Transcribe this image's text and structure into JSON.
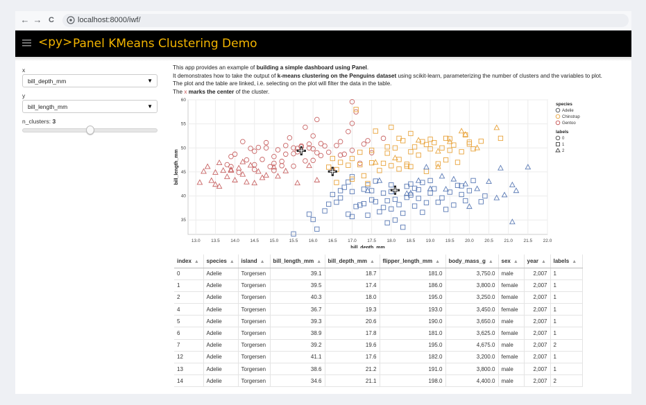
{
  "browser": {
    "back_glyph": "←",
    "forward_glyph": "→",
    "reload_glyph": "C",
    "url": "localhost:8000/iwf/"
  },
  "header": {
    "logo": "<py>",
    "title": "Panel KMeans Clustering Demo",
    "accent": "#f2b400"
  },
  "sidebar": {
    "x_label": "x",
    "x_value": "bill_depth_mm",
    "y_label": "y",
    "y_value": "bill_length_mm",
    "clusters_label": "n_clusters:",
    "clusters_value": "3",
    "clusters_fraction": 0.5
  },
  "intro": {
    "l1a": "This app provides an example of ",
    "l1b": "building a simple dashboard using Panel",
    "l1c": ".",
    "l2a": "It demonstrates how to take the output of ",
    "l2b": "k-means clustering on the Penguins dataset",
    "l2c": " using scikit-learn, parameterizing the number of clusters and the variables to plot.",
    "l3": "The plot and the table are linked, i.e. selecting on the plot will filter the data in the table.",
    "l4a": "The ",
    "l4x": "x",
    "l4b": "marks the center",
    "l4c": " of the cluster."
  },
  "chart_data": {
    "type": "scatter",
    "xlabel": "bill_depth_mm",
    "ylabel": "bill_length_mm",
    "xlim": [
      12.8,
      22.0
    ],
    "ylim": [
      32,
      60
    ],
    "xticks": [
      "13.0",
      "13.5",
      "14.0",
      "14.5",
      "15.0",
      "15.5",
      "16.0",
      "16.5",
      "17.0",
      "17.5",
      "18.0",
      "18.5",
      "19.0",
      "19.5",
      "20.0",
      "20.5",
      "21.0",
      "21.5",
      "22.0"
    ],
    "yticks": [
      "35",
      "40",
      "45",
      "50",
      "55",
      "60"
    ],
    "legend_species_title": "species",
    "legend_species": [
      {
        "name": "Adelie",
        "color": "#45494d"
      },
      {
        "name": "Chinstrap",
        "color": "#e8a33b"
      },
      {
        "name": "Gentoo",
        "color": "#c44e4e"
      }
    ],
    "legend_labels_title": "labels",
    "legend_labels": [
      {
        "name": "0",
        "shape": "circle"
      },
      {
        "name": "1",
        "shape": "square"
      },
      {
        "name": "2",
        "shape": "triangle"
      }
    ],
    "cluster_colors": {
      "circle": "#c86464",
      "square_low": "#5a7ab5",
      "square_high": "#e8a33b",
      "triangle_blue": "#5a7ab5",
      "triangle_red": "#c86464"
    },
    "centers": [
      {
        "x": 15.7,
        "y": 49.4
      },
      {
        "x": 16.5,
        "y": 45.1
      },
      {
        "x": 18.1,
        "y": 41.2
      }
    ],
    "series": [
      {
        "name": "label-0",
        "shape": "circle",
        "color": "#c86464",
        "points": [
          [
            14.3,
            47.5
          ],
          [
            14.5,
            49.3
          ],
          [
            14.8,
            50.0
          ],
          [
            14.9,
            46.1
          ],
          [
            15.0,
            48.2
          ],
          [
            15.1,
            49.6
          ],
          [
            15.2,
            46.3
          ],
          [
            15.3,
            50.5
          ],
          [
            15.5,
            48.8
          ],
          [
            15.6,
            49.9
          ],
          [
            15.7,
            50.4
          ],
          [
            15.8,
            47.3
          ],
          [
            15.9,
            50.0
          ],
          [
            16.0,
            49.8
          ],
          [
            16.1,
            55.9
          ],
          [
            16.2,
            48.4
          ],
          [
            16.3,
            50.4
          ],
          [
            16.4,
            49.1
          ],
          [
            16.5,
            45.5
          ],
          [
            16.6,
            50.5
          ],
          [
            16.8,
            48.7
          ],
          [
            17.0,
            49.5
          ],
          [
            17.0,
            59.6
          ],
          [
            17.2,
            46.8
          ],
          [
            17.3,
            50.8
          ],
          [
            17.5,
            49.0
          ],
          [
            17.8,
            52.0
          ],
          [
            17.0,
            55.1
          ],
          [
            16.7,
            51.3
          ],
          [
            15.8,
            54.3
          ],
          [
            15.4,
            52.1
          ],
          [
            14.6,
            50.1
          ],
          [
            14.2,
            51.3
          ],
          [
            13.9,
            48.2
          ],
          [
            14.7,
            47.6
          ],
          [
            15.9,
            50.8
          ],
          [
            16.0,
            52.5
          ],
          [
            16.9,
            53.4
          ],
          [
            15.3,
            48.7
          ],
          [
            15.7,
            50.2
          ],
          [
            14.4,
            49.9
          ],
          [
            14.8,
            51.1
          ],
          [
            16.2,
            50.9
          ],
          [
            17.1,
            57.5
          ],
          [
            17.4,
            51.5
          ],
          [
            15.5,
            50.0
          ],
          [
            13.9,
            46.1
          ],
          [
            14.0,
            48.7
          ],
          [
            14.5,
            46.5
          ],
          [
            15.0,
            46.8
          ],
          [
            15.2,
            47.2
          ],
          [
            15.6,
            49.2
          ],
          [
            16.1,
            49.0
          ],
          [
            16.7,
            48.5
          ],
          [
            14.1,
            44.9
          ],
          [
            13.8,
            46.5
          ],
          [
            14.5,
            45.5
          ],
          [
            15.0,
            45.3
          ],
          [
            15.5,
            46.2
          ],
          [
            16.0,
            47.4
          ]
        ]
      },
      {
        "name": "label-1-low",
        "shape": "square",
        "color": "#5a7ab5",
        "points": [
          [
            15.5,
            32.1
          ],
          [
            16.0,
            35.1
          ],
          [
            16.1,
            33.1
          ],
          [
            16.3,
            36.9
          ],
          [
            16.6,
            38.7
          ],
          [
            16.7,
            39.6
          ],
          [
            16.9,
            36.2
          ],
          [
            17.0,
            35.7
          ],
          [
            17.0,
            40.9
          ],
          [
            17.1,
            37.8
          ],
          [
            17.2,
            38.1
          ],
          [
            17.3,
            38.4
          ],
          [
            17.4,
            36.0
          ],
          [
            17.5,
            39.2
          ],
          [
            17.5,
            41.1
          ],
          [
            17.6,
            38.8
          ],
          [
            17.7,
            36.7
          ],
          [
            17.8,
            40.6
          ],
          [
            17.9,
            39.0
          ],
          [
            18.0,
            37.3
          ],
          [
            18.0,
            40.9
          ],
          [
            18.1,
            35.0
          ],
          [
            18.2,
            38.2
          ],
          [
            18.3,
            36.4
          ],
          [
            18.4,
            39.7
          ],
          [
            18.4,
            42.0
          ],
          [
            18.5,
            40.2
          ],
          [
            18.6,
            37.9
          ],
          [
            18.7,
            39.5
          ],
          [
            18.7,
            41.3
          ],
          [
            18.8,
            36.6
          ],
          [
            18.9,
            38.6
          ],
          [
            19.0,
            40.6
          ],
          [
            19.1,
            41.5
          ],
          [
            19.2,
            38.7
          ],
          [
            19.3,
            39.6
          ],
          [
            19.4,
            37.2
          ],
          [
            19.5,
            40.8
          ],
          [
            19.6,
            38.1
          ],
          [
            19.7,
            42.2
          ],
          [
            19.8,
            40.3
          ],
          [
            19.9,
            39.0
          ],
          [
            20.0,
            41.1
          ],
          [
            20.1,
            43.2
          ],
          [
            20.3,
            38.8
          ],
          [
            16.4,
            38.3
          ],
          [
            16.8,
            41.8
          ],
          [
            17.6,
            43.1
          ],
          [
            17.9,
            34.4
          ],
          [
            18.3,
            33.5
          ],
          [
            18.5,
            42.5
          ],
          [
            19.0,
            43.2
          ],
          [
            18.8,
            42.8
          ],
          [
            17.4,
            42.3
          ],
          [
            16.5,
            40.3
          ],
          [
            19.8,
            42.1
          ],
          [
            20.4,
            40.0
          ],
          [
            17.8,
            37.6
          ],
          [
            18.1,
            39.3
          ],
          [
            16.9,
            42.9
          ],
          [
            15.9,
            36.2
          ],
          [
            17.0,
            44.0
          ],
          [
            18.0,
            42.3
          ],
          [
            16.7,
            41.1
          ],
          [
            17.3,
            41.4
          ],
          [
            18.6,
            41.6
          ]
        ]
      },
      {
        "name": "label-1-high",
        "shape": "square",
        "color": "#e8a33b",
        "points": [
          [
            16.4,
            46.0
          ],
          [
            16.6,
            45.5
          ],
          [
            16.7,
            47.0
          ],
          [
            17.0,
            47.8
          ],
          [
            17.2,
            46.5
          ],
          [
            17.5,
            49.5
          ],
          [
            17.8,
            46.8
          ],
          [
            17.9,
            48.9
          ],
          [
            18.0,
            46.3
          ],
          [
            18.1,
            50.0
          ],
          [
            18.2,
            47.6
          ],
          [
            18.3,
            51.5
          ],
          [
            18.4,
            46.2
          ],
          [
            18.5,
            49.2
          ],
          [
            18.6,
            50.2
          ],
          [
            18.7,
            48.5
          ],
          [
            18.8,
            51.3
          ],
          [
            18.9,
            50.7
          ],
          [
            19.0,
            49.8
          ],
          [
            19.1,
            51.1
          ],
          [
            19.2,
            46.7
          ],
          [
            19.3,
            50.0
          ],
          [
            19.4,
            52.0
          ],
          [
            19.5,
            51.9
          ],
          [
            19.6,
            50.6
          ],
          [
            19.8,
            49.2
          ],
          [
            19.9,
            52.7
          ],
          [
            20.0,
            50.8
          ],
          [
            20.1,
            49.8
          ],
          [
            20.3,
            51.4
          ],
          [
            17.1,
            58.0
          ],
          [
            17.6,
            53.5
          ],
          [
            18.0,
            54.3
          ],
          [
            18.4,
            46.6
          ],
          [
            17.4,
            42.6
          ],
          [
            16.6,
            42.8
          ],
          [
            17.0,
            43.5
          ],
          [
            17.3,
            44.2
          ],
          [
            17.7,
            45.3
          ],
          [
            18.2,
            45.6
          ],
          [
            18.5,
            46.1
          ],
          [
            18.9,
            45.1
          ],
          [
            19.4,
            47.5
          ],
          [
            19.7,
            47.0
          ],
          [
            20.0,
            51.2
          ],
          [
            20.8,
            52.0
          ],
          [
            19.0,
            51.8
          ],
          [
            18.5,
            53.0
          ],
          [
            17.9,
            50.2
          ],
          [
            17.2,
            49.1
          ],
          [
            16.9,
            46.4
          ],
          [
            19.5,
            49.5
          ],
          [
            18.2,
            52.0
          ],
          [
            16.5,
            47.8
          ],
          [
            17.5,
            46.9
          ]
        ]
      },
      {
        "name": "label-2-red",
        "shape": "triangle",
        "color": "#c86464",
        "points": [
          [
            13.1,
            42.8
          ],
          [
            13.2,
            45.1
          ],
          [
            13.3,
            46.1
          ],
          [
            13.4,
            43.2
          ],
          [
            13.5,
            44.9
          ],
          [
            13.6,
            42.0
          ],
          [
            13.7,
            45.3
          ],
          [
            13.8,
            44.0
          ],
          [
            13.9,
            45.5
          ],
          [
            14.0,
            43.3
          ],
          [
            14.1,
            45.8
          ],
          [
            14.2,
            44.5
          ],
          [
            14.3,
            42.9
          ],
          [
            14.4,
            46.4
          ],
          [
            14.5,
            42.7
          ],
          [
            14.6,
            45.1
          ],
          [
            14.7,
            43.8
          ],
          [
            14.8,
            44.3
          ],
          [
            15.0,
            46.0
          ],
          [
            15.1,
            44.1
          ],
          [
            15.3,
            45.2
          ],
          [
            15.6,
            42.7
          ],
          [
            16.1,
            43.3
          ],
          [
            15.9,
            46.3
          ],
          [
            13.6,
            46.9
          ],
          [
            13.9,
            45.3
          ],
          [
            14.2,
            47.1
          ],
          [
            13.5,
            42.4
          ]
        ]
      },
      {
        "name": "label-2-blue",
        "shape": "triangle",
        "color": "#5a7ab5",
        "points": [
          [
            18.5,
            40.6
          ],
          [
            19.0,
            41.5
          ],
          [
            19.3,
            44.1
          ],
          [
            19.6,
            43.5
          ],
          [
            19.9,
            42.5
          ],
          [
            20.2,
            41.5
          ],
          [
            20.5,
            43.0
          ],
          [
            20.7,
            39.6
          ],
          [
            20.9,
            40.2
          ],
          [
            21.1,
            42.3
          ],
          [
            21.2,
            41.1
          ],
          [
            21.5,
            46.0
          ],
          [
            21.1,
            34.6
          ],
          [
            20.0,
            37.8
          ],
          [
            18.7,
            43.2
          ],
          [
            17.7,
            43.2
          ],
          [
            18.4,
            40.5
          ],
          [
            17.4,
            41.1
          ],
          [
            19.4,
            41.4
          ],
          [
            18.9,
            46.0
          ],
          [
            20.8,
            45.8
          ]
        ]
      },
      {
        "name": "label-2-amber",
        "shape": "triangle",
        "color": "#e8a33b",
        "points": [
          [
            20.7,
            54.2
          ],
          [
            19.8,
            53.5
          ],
          [
            19.2,
            49.3
          ],
          [
            18.1,
            47.9
          ],
          [
            19.5,
            51.3
          ],
          [
            20.2,
            50.0
          ],
          [
            18.7,
            51.6
          ],
          [
            19.9,
            52.8
          ],
          [
            19.2,
            46.1
          ],
          [
            17.6,
            47.0
          ]
        ]
      }
    ]
  },
  "table": {
    "columns": [
      "index",
      "species",
      "island",
      "bill_length_mm",
      "bill_depth_mm",
      "flipper_length_mm",
      "body_mass_g",
      "sex",
      "year",
      "labels"
    ],
    "sort_glyph": "▲",
    "rows": [
      [
        "0",
        "Adelie",
        "Torgersen",
        "39.1",
        "18.7",
        "181.0",
        "3,750.0",
        "male",
        "2,007",
        "1"
      ],
      [
        "1",
        "Adelie",
        "Torgersen",
        "39.5",
        "17.4",
        "186.0",
        "3,800.0",
        "female",
        "2,007",
        "1"
      ],
      [
        "2",
        "Adelie",
        "Torgersen",
        "40.3",
        "18.0",
        "195.0",
        "3,250.0",
        "female",
        "2,007",
        "1"
      ],
      [
        "4",
        "Adelie",
        "Torgersen",
        "36.7",
        "19.3",
        "193.0",
        "3,450.0",
        "female",
        "2,007",
        "1"
      ],
      [
        "5",
        "Adelie",
        "Torgersen",
        "39.3",
        "20.6",
        "190.0",
        "3,650.0",
        "male",
        "2,007",
        "1"
      ],
      [
        "6",
        "Adelie",
        "Torgersen",
        "38.9",
        "17.8",
        "181.0",
        "3,625.0",
        "female",
        "2,007",
        "1"
      ],
      [
        "7",
        "Adelie",
        "Torgersen",
        "39.2",
        "19.6",
        "195.0",
        "4,675.0",
        "male",
        "2,007",
        "2"
      ],
      [
        "12",
        "Adelie",
        "Torgersen",
        "41.1",
        "17.6",
        "182.0",
        "3,200.0",
        "female",
        "2,007",
        "1"
      ],
      [
        "13",
        "Adelie",
        "Torgersen",
        "38.6",
        "21.2",
        "191.0",
        "3,800.0",
        "male",
        "2,007",
        "1"
      ],
      [
        "14",
        "Adelie",
        "Torgersen",
        "34.6",
        "21.1",
        "198.0",
        "4,400.0",
        "male",
        "2,007",
        "2"
      ]
    ]
  }
}
